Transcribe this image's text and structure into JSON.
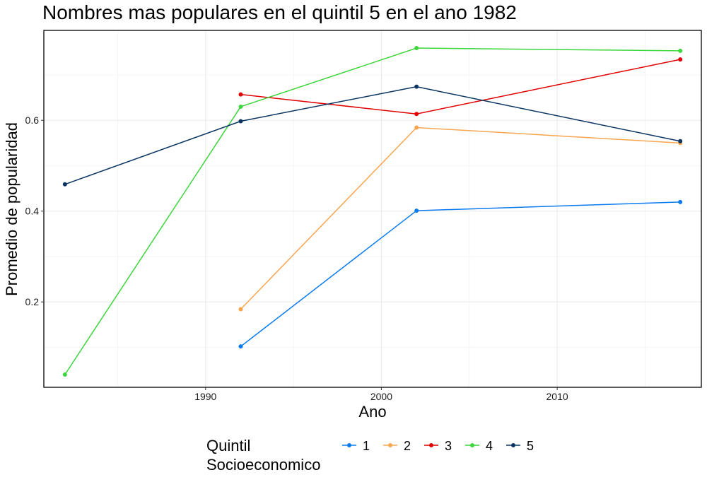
{
  "chart_data": {
    "type": "line",
    "title": "Nombres mas populares en el quintil 5 en el ano 1982",
    "xlabel": "Ano",
    "ylabel": "Promedio de popularidad",
    "xlim": [
      1980.8,
      2018.2
    ],
    "ylim": [
      0.012,
      0.798
    ],
    "x_ticks": [
      1990,
      2000,
      2010
    ],
    "y_ticks": [
      0.2,
      0.4,
      0.6
    ],
    "x_tick_labels": [
      "1990",
      "2000",
      "2010"
    ],
    "y_tick_labels": [
      "0.2",
      "0.4",
      "0.6"
    ],
    "grid": true,
    "legend": {
      "title_lines": [
        "Quintil",
        "Socioeconomico"
      ],
      "placement": "bottom"
    },
    "series": [
      {
        "name": "1",
        "color": "#0a7bef",
        "x": [
          1992,
          2002,
          2017
        ],
        "y": [
          0.102,
          0.401,
          0.42
        ]
      },
      {
        "name": "2",
        "color": "#f7a54f",
        "x": [
          1992,
          2002,
          2017
        ],
        "y": [
          0.184,
          0.584,
          0.55
        ]
      },
      {
        "name": "3",
        "color": "#e00000",
        "x": [
          1992,
          2002,
          2017
        ],
        "y": [
          0.657,
          0.614,
          0.734
        ]
      },
      {
        "name": "4",
        "color": "#3dd63d",
        "x": [
          1982,
          1992,
          2002,
          2017
        ],
        "y": [
          0.04,
          0.63,
          0.759,
          0.753
        ]
      },
      {
        "name": "5",
        "color": "#0a3563",
        "x": [
          1982,
          1992,
          2002,
          2017
        ],
        "y": [
          0.459,
          0.598,
          0.674,
          0.554
        ]
      }
    ]
  }
}
